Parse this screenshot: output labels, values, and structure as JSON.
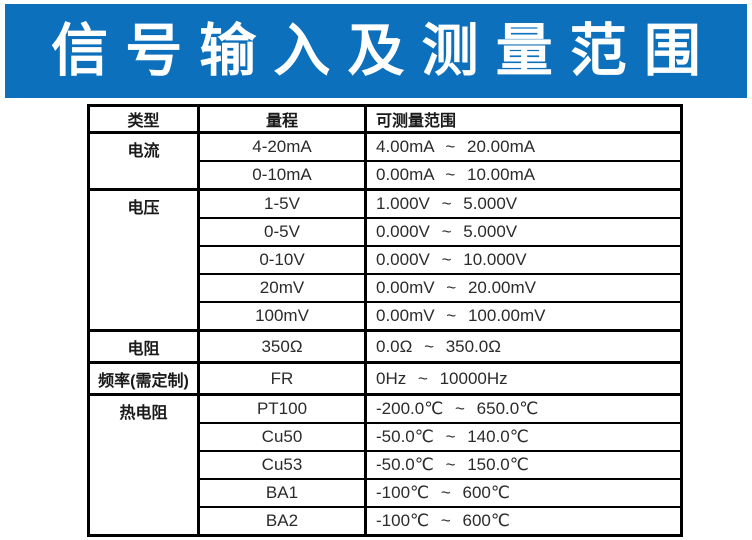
{
  "banner": {
    "title": "信号输入及测量范围",
    "bg_color": "#0d70bd",
    "text_color": "#ffffff"
  },
  "table": {
    "headers": [
      "类型",
      "量程",
      "可测量范围"
    ],
    "groups": [
      {
        "type": "电流",
        "rows": [
          [
            "4-20mA",
            "4.00mA ~ 20.00mA"
          ],
          [
            "0-10mA",
            "0.00mA ~ 10.00mA"
          ]
        ]
      },
      {
        "type": "电压",
        "rows": [
          [
            "1-5V",
            "1.000V ~ 5.000V"
          ],
          [
            "0-5V",
            "0.000V ~ 5.000V"
          ],
          [
            "0-10V",
            "0.000V ~ 10.000V"
          ],
          [
            "20mV",
            "0.00mV ~ 20.00mV"
          ],
          [
            "100mV",
            "0.00mV ~ 100.00mV"
          ]
        ]
      },
      {
        "type": "电阻",
        "rows": [
          [
            "350Ω",
            "0.0Ω ~ 350.0Ω"
          ]
        ]
      },
      {
        "type": "频率(需定制)",
        "rows": [
          [
            "FR",
            "0Hz ~ 10000Hz"
          ]
        ]
      },
      {
        "type": "热电阻",
        "rows": [
          [
            "PT100",
            "-200.0℃ ~ 650.0℃"
          ],
          [
            "Cu50",
            "-50.0℃ ~ 140.0℃"
          ],
          [
            "Cu53",
            "-50.0℃ ~ 150.0℃"
          ],
          [
            "BA1",
            "-100℃ ~ 600℃"
          ],
          [
            "BA2",
            "-100℃ ~ 600℃"
          ]
        ]
      }
    ]
  }
}
